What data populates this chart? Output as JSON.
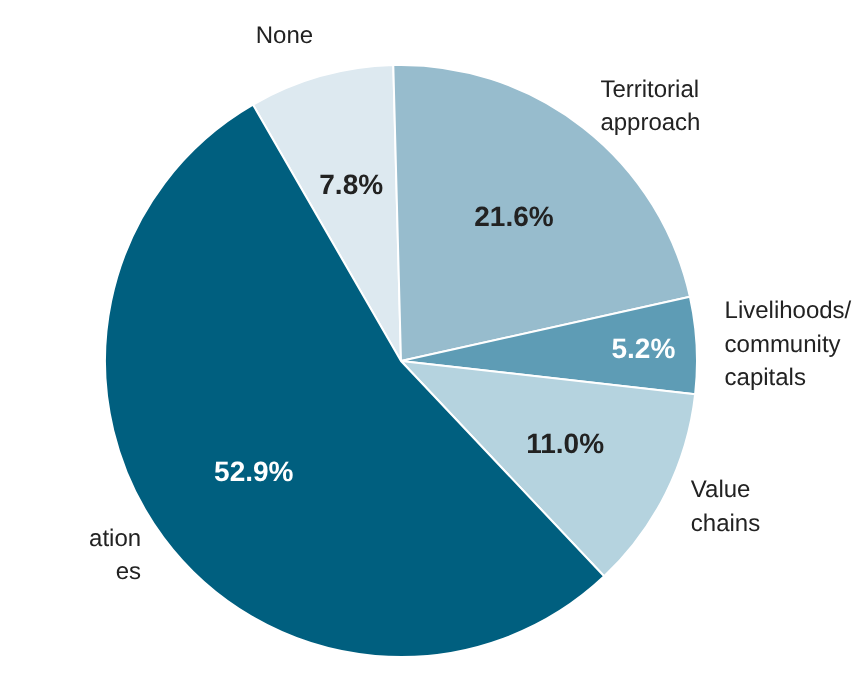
{
  "chart_data": {
    "type": "pie",
    "categories": [
      "None",
      "Territorial\napproach",
      "Livelihoods/\ncommunity\ncapitals",
      "Value\nchains",
      "ation\nes"
    ],
    "values": [
      7.8,
      21.6,
      5.2,
      11.0,
      52.9
    ],
    "colors": [
      "#dde9f0",
      "#97bccd",
      "#5e9cb5",
      "#b5d3df",
      "#005f7f"
    ],
    "value_labels": [
      "7.8%",
      "21.6%",
      "5.2%",
      "11.0%",
      "52.9%"
    ]
  }
}
